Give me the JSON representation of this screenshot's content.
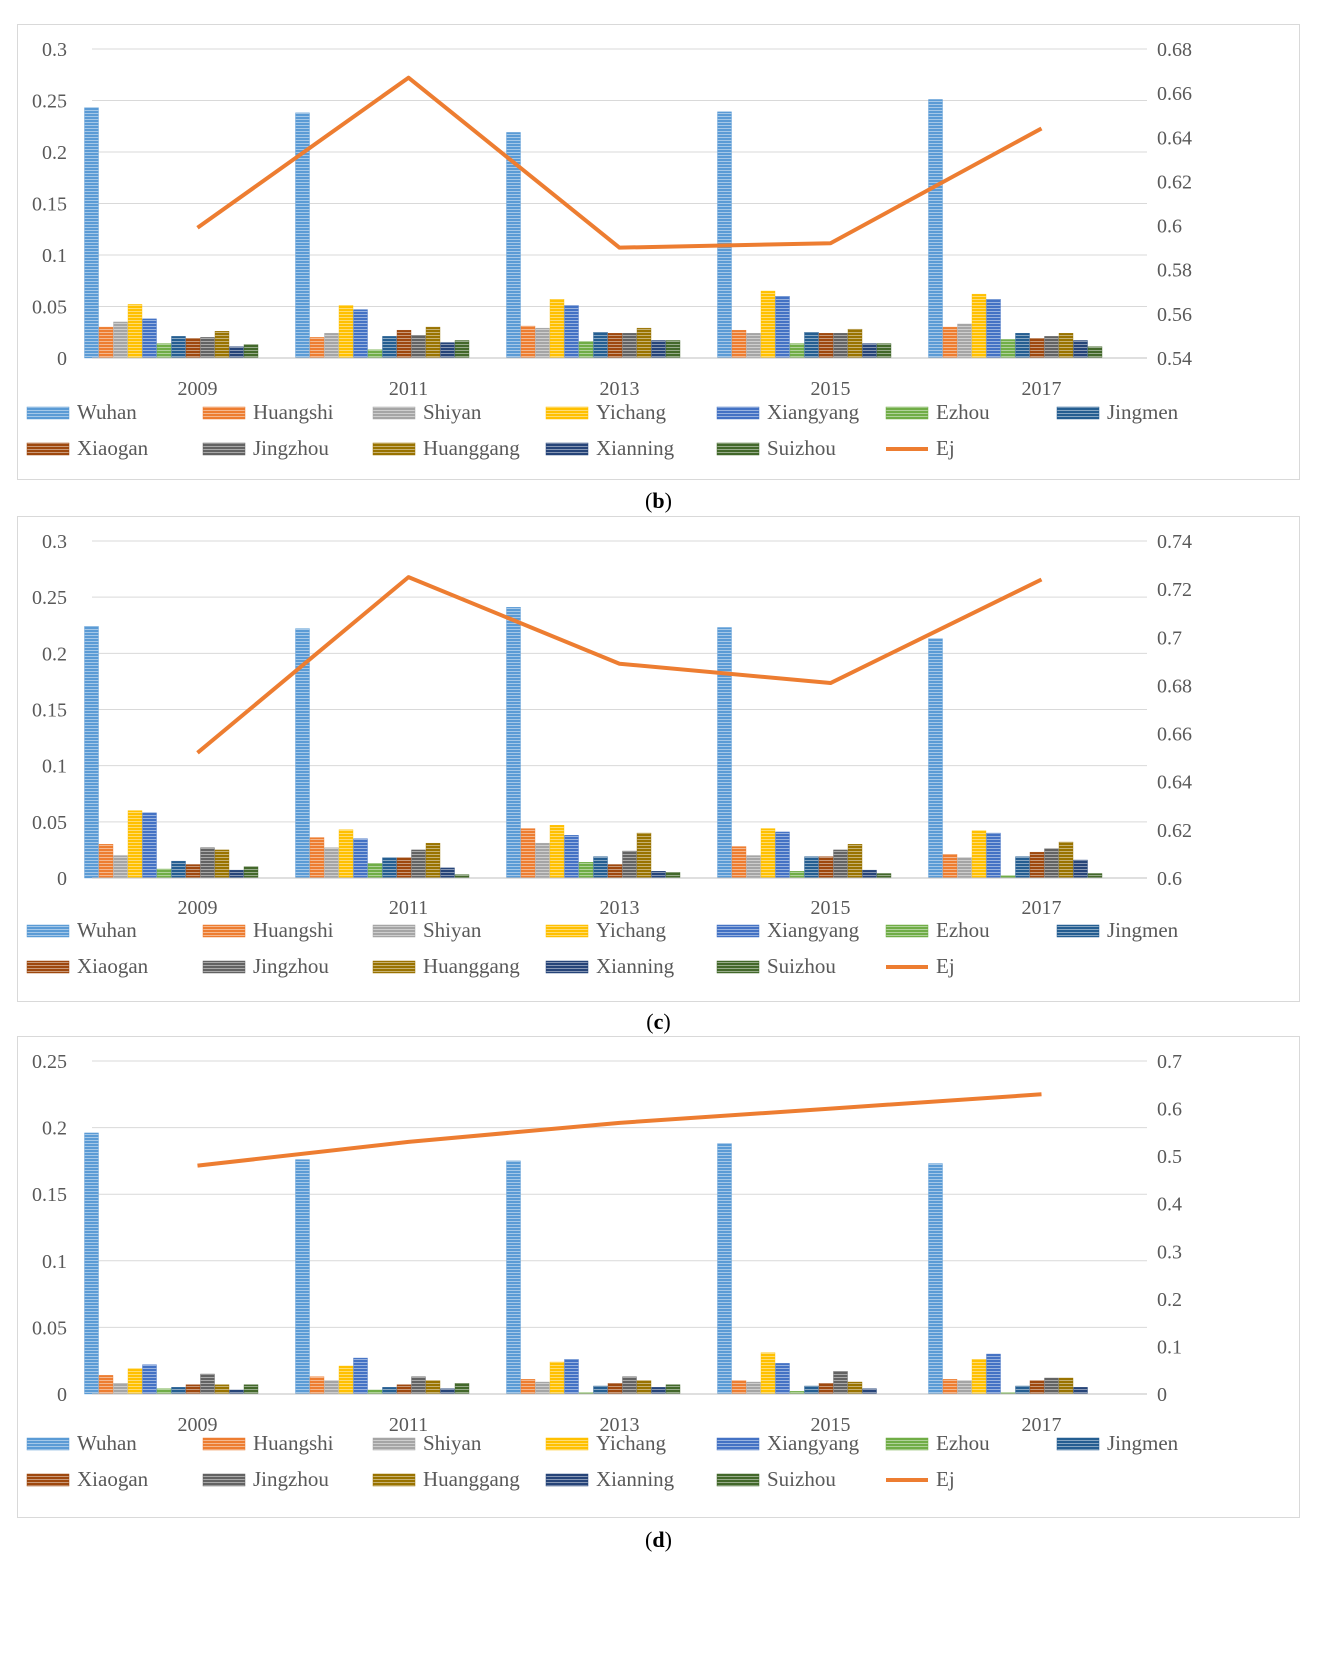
{
  "colors": {
    "Wuhan": "#5b9bd5",
    "Huangshi": "#ed7d31",
    "Shiyan": "#a5a5a5",
    "Yichang": "#ffc000",
    "Xiangyang": "#4472c4",
    "Ezhou": "#70ad47",
    "Jingmen": "#255e91",
    "Xiaogan": "#9e480e",
    "Jingzhou": "#636363",
    "Huanggang": "#997300",
    "Xianning": "#264478",
    "Suizhou": "#43682b",
    "Ej": "#ed7d31",
    "gridline": "#d9d9d9",
    "axis_text": "#595959"
  },
  "chart_data": [
    {
      "id": "b",
      "type": "bar",
      "caption_open": "(",
      "caption_letter": "b",
      "caption_close": ")",
      "categories": [
        "2009",
        "2011",
        "2013",
        "2015",
        "2017"
      ],
      "ylim": [
        0,
        0.3
      ],
      "yticks": [
        "0",
        "0.05",
        "0.1",
        "0.15",
        "0.2",
        "0.25",
        "0.3"
      ],
      "y2lim": [
        0.54,
        0.68
      ],
      "y2ticks": [
        "0.54",
        "0.56",
        "0.58",
        "0.6",
        "0.62",
        "0.64",
        "0.66",
        "0.68"
      ],
      "series": [
        {
          "name": "Wuhan",
          "values": [
            0.243,
            0.238,
            0.219,
            0.239,
            0.251
          ]
        },
        {
          "name": "Huangshi",
          "values": [
            0.03,
            0.02,
            0.031,
            0.027,
            0.03
          ]
        },
        {
          "name": "Shiyan",
          "values": [
            0.035,
            0.024,
            0.029,
            0.024,
            0.033
          ]
        },
        {
          "name": "Yichang",
          "values": [
            0.052,
            0.051,
            0.057,
            0.065,
            0.062
          ]
        },
        {
          "name": "Xiangyang",
          "values": [
            0.038,
            0.047,
            0.051,
            0.06,
            0.057
          ]
        },
        {
          "name": "Ezhou",
          "values": [
            0.014,
            0.008,
            0.016,
            0.014,
            0.018
          ]
        },
        {
          "name": "Jingmen",
          "values": [
            0.021,
            0.021,
            0.025,
            0.025,
            0.024
          ]
        },
        {
          "name": "Xiaogan",
          "values": [
            0.019,
            0.027,
            0.024,
            0.024,
            0.019
          ]
        },
        {
          "name": "Jingzhou",
          "values": [
            0.02,
            0.022,
            0.024,
            0.024,
            0.021
          ]
        },
        {
          "name": "Huanggang",
          "values": [
            0.026,
            0.03,
            0.029,
            0.028,
            0.024
          ]
        },
        {
          "name": "Xianning",
          "values": [
            0.011,
            0.015,
            0.017,
            0.014,
            0.017
          ]
        },
        {
          "name": "Suizhou",
          "values": [
            0.013,
            0.017,
            0.017,
            0.014,
            0.011
          ]
        }
      ],
      "line": {
        "name": "Ej",
        "axis": "secondary",
        "values": [
          0.599,
          0.667,
          0.59,
          0.592,
          0.644
        ]
      },
      "legend": [
        "Wuhan",
        "Huangshi",
        "Shiyan",
        "Yichang",
        "Xiangyang",
        "Ezhou",
        "Jingmen",
        "Xiaogan",
        "Jingzhou",
        "Huanggang",
        "Xianning",
        "Suizhou",
        "Ej"
      ],
      "legend_position": "bottom"
    },
    {
      "id": "c",
      "type": "bar",
      "caption_open": "(",
      "caption_letter": "c",
      "caption_close": ")",
      "categories": [
        "2009",
        "2011",
        "2013",
        "2015",
        "2017"
      ],
      "ylim": [
        0,
        0.3
      ],
      "yticks": [
        "0",
        "0.05",
        "0.1",
        "0.15",
        "0.2",
        "0.25",
        "0.3"
      ],
      "y2lim": [
        0.6,
        0.74
      ],
      "y2ticks": [
        "0.6",
        "0.62",
        "0.64",
        "0.66",
        "0.68",
        "0.7",
        "0.72",
        "0.74"
      ],
      "series": [
        {
          "name": "Wuhan",
          "values": [
            0.224,
            0.222,
            0.241,
            0.223,
            0.213
          ]
        },
        {
          "name": "Huangshi",
          "values": [
            0.03,
            0.036,
            0.044,
            0.028,
            0.021
          ]
        },
        {
          "name": "Shiyan",
          "values": [
            0.02,
            0.027,
            0.031,
            0.02,
            0.018
          ]
        },
        {
          "name": "Yichang",
          "values": [
            0.06,
            0.043,
            0.047,
            0.044,
            0.042
          ]
        },
        {
          "name": "Xiangyang",
          "values": [
            0.058,
            0.035,
            0.038,
            0.041,
            0.04
          ]
        },
        {
          "name": "Ezhou",
          "values": [
            0.008,
            0.013,
            0.014,
            0.006,
            0.002
          ]
        },
        {
          "name": "Jingmen",
          "values": [
            0.015,
            0.018,
            0.019,
            0.019,
            0.019
          ]
        },
        {
          "name": "Xiaogan",
          "values": [
            0.012,
            0.018,
            0.012,
            0.019,
            0.023
          ]
        },
        {
          "name": "Jingzhou",
          "values": [
            0.027,
            0.025,
            0.024,
            0.025,
            0.026
          ]
        },
        {
          "name": "Huanggang",
          "values": [
            0.025,
            0.031,
            0.04,
            0.03,
            0.032
          ]
        },
        {
          "name": "Xianning",
          "values": [
            0.007,
            0.009,
            0.006,
            0.007,
            0.016
          ]
        },
        {
          "name": "Suizhou",
          "values": [
            0.01,
            0.003,
            0.005,
            0.004,
            0.004
          ]
        }
      ],
      "line": {
        "name": "Ej",
        "axis": "secondary",
        "values": [
          0.652,
          0.725,
          0.689,
          0.681,
          0.724
        ]
      },
      "legend": [
        "Wuhan",
        "Huangshi",
        "Shiyan",
        "Yichang",
        "Xiangyang",
        "Ezhou",
        "Jingmen",
        "Xiaogan",
        "Jingzhou",
        "Huanggang",
        "Xianning",
        "Suizhou",
        "Ej"
      ],
      "legend_position": "bottom"
    },
    {
      "id": "d",
      "type": "bar",
      "caption_open": "(",
      "caption_letter": "d",
      "caption_close": ")",
      "categories": [
        "2009",
        "2011",
        "2013",
        "2015",
        "2017"
      ],
      "ylim": [
        0,
        0.25
      ],
      "yticks": [
        "0",
        "0.05",
        "0.1",
        "0.15",
        "0.2",
        "0.25"
      ],
      "y2lim": [
        0,
        0.7
      ],
      "y2ticks": [
        "0",
        "0.1",
        "0.2",
        "0.3",
        "0.4",
        "0.5",
        "0.6",
        "0.7"
      ],
      "series": [
        {
          "name": "Wuhan",
          "values": [
            0.196,
            0.176,
            0.175,
            0.188,
            0.173
          ]
        },
        {
          "name": "Huangshi",
          "values": [
            0.014,
            0.013,
            0.011,
            0.01,
            0.011
          ]
        },
        {
          "name": "Shiyan",
          "values": [
            0.008,
            0.01,
            0.009,
            0.009,
            0.01
          ]
        },
        {
          "name": "Yichang",
          "values": [
            0.019,
            0.021,
            0.024,
            0.031,
            0.026
          ]
        },
        {
          "name": "Xiangyang",
          "values": [
            0.022,
            0.027,
            0.026,
            0.023,
            0.03
          ]
        },
        {
          "name": "Ezhou",
          "values": [
            0.004,
            0.003,
            0.001,
            0.002,
            0.001
          ]
        },
        {
          "name": "Jingmen",
          "values": [
            0.005,
            0.005,
            0.006,
            0.006,
            0.006
          ]
        },
        {
          "name": "Xiaogan",
          "values": [
            0.007,
            0.007,
            0.008,
            0.008,
            0.01
          ]
        },
        {
          "name": "Jingzhou",
          "values": [
            0.015,
            0.013,
            0.013,
            0.017,
            0.012
          ]
        },
        {
          "name": "Huanggang",
          "values": [
            0.007,
            0.01,
            0.01,
            0.009,
            0.012
          ]
        },
        {
          "name": "Xianning",
          "values": [
            0.003,
            0.004,
            0.005,
            0.004,
            0.005
          ]
        },
        {
          "name": "Suizhou",
          "values": [
            0.007,
            0.008,
            0.007,
            0.0,
            0.0
          ]
        }
      ],
      "line": {
        "name": "Ej",
        "axis": "secondary",
        "values": [
          0.48,
          0.53,
          0.57,
          0.6,
          0.63
        ]
      },
      "legend": [
        "Wuhan",
        "Huangshi",
        "Shiyan",
        "Yichang",
        "Xiangyang",
        "Ezhou",
        "Jingmen",
        "Xiaogan",
        "Jingzhou",
        "Huanggang",
        "Xianning",
        "Suizhou",
        "Ej"
      ],
      "legend_position": "bottom"
    }
  ]
}
